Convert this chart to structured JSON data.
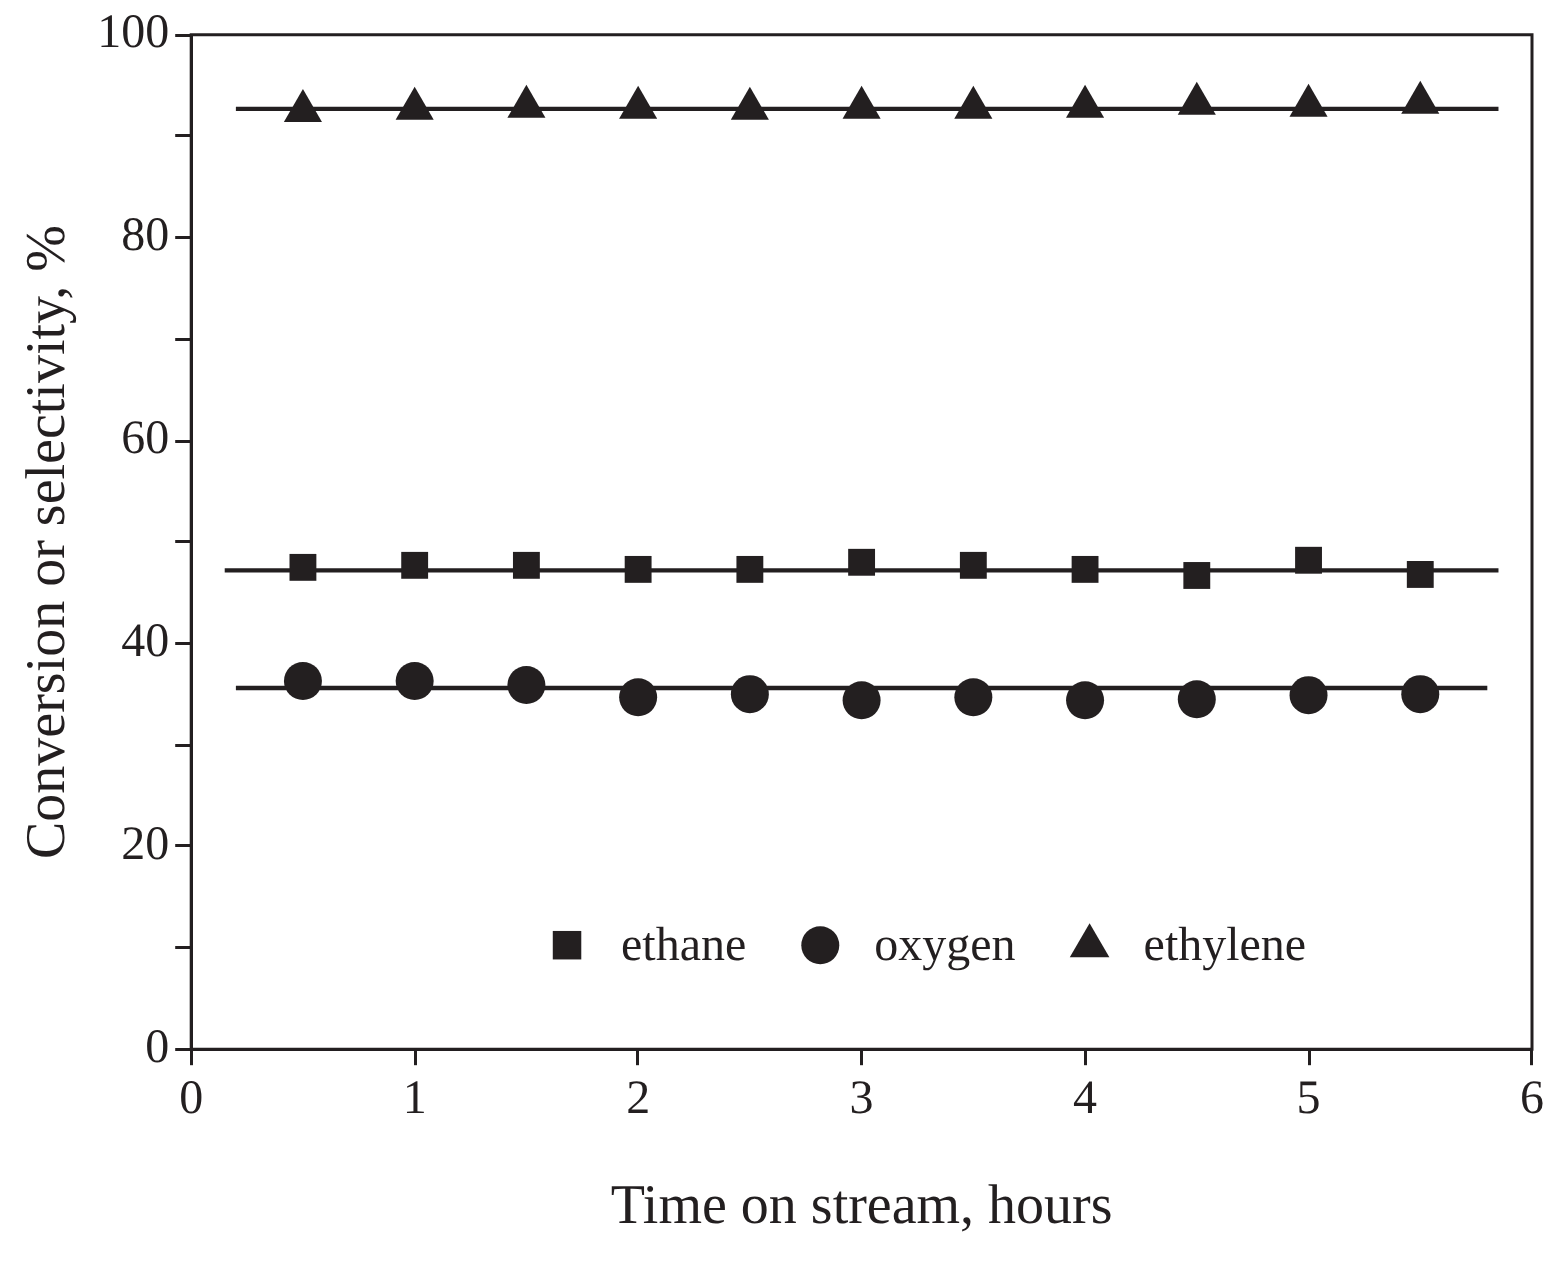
{
  "chart_data": {
    "type": "scatter",
    "xlabel": "Time on stream, hours",
    "ylabel": "Conversion or selectivity, %",
    "x": [
      0.5,
      1,
      1.5,
      2,
      2.5,
      3,
      3.5,
      4,
      4.5,
      5,
      5.5
    ],
    "series": [
      {
        "name": "ethane",
        "color": "#231f20",
        "marker": "square",
        "values": [
          47.5,
          47.7,
          47.7,
          47.3,
          47.3,
          48.0,
          47.7,
          47.3,
          46.7,
          48.2,
          46.8
        ]
      },
      {
        "name": "oxygen",
        "color": "#231f20",
        "marker": "circle",
        "values": [
          36.3,
          36.3,
          35.9,
          34.7,
          35.0,
          34.4,
          34.7,
          34.4,
          34.5,
          34.9,
          35.0
        ]
      },
      {
        "name": "ethylene",
        "color": "#231f20",
        "marker": "triangle",
        "values": [
          92.5,
          92.7,
          92.9,
          92.8,
          92.7,
          92.8,
          92.8,
          92.9,
          93.2,
          93.0,
          93.3
        ]
      },
      {
        "type": "line",
        "color": "#231f20",
        "marker": "none",
        "x": [
          0.15,
          5.85
        ],
        "values": [
          47.2,
          47.2
        ]
      },
      {
        "type": "line",
        "color": "#231f20",
        "marker": "none",
        "x": [
          0.2,
          5.8
        ],
        "values": [
          35.6,
          35.6
        ]
      },
      {
        "type": "line",
        "color": "#231f20",
        "marker": "none",
        "x": [
          0.2,
          5.85
        ],
        "values": [
          92.7,
          92.7
        ]
      }
    ],
    "xlim": [
      0,
      6
    ],
    "xticks": [
      0,
      1,
      2,
      3,
      4,
      5,
      6
    ],
    "ylim": [
      0,
      100
    ],
    "yticks": [
      0,
      {
        "value": 10,
        "label": null
      },
      20,
      {
        "value": 30,
        "label": null
      },
      40,
      {
        "value": 50,
        "label": null
      },
      60,
      {
        "value": 70,
        "label": null
      },
      80,
      {
        "value": 90,
        "label": null
      },
      100
    ],
    "grid": false,
    "legend": "bottom"
  }
}
